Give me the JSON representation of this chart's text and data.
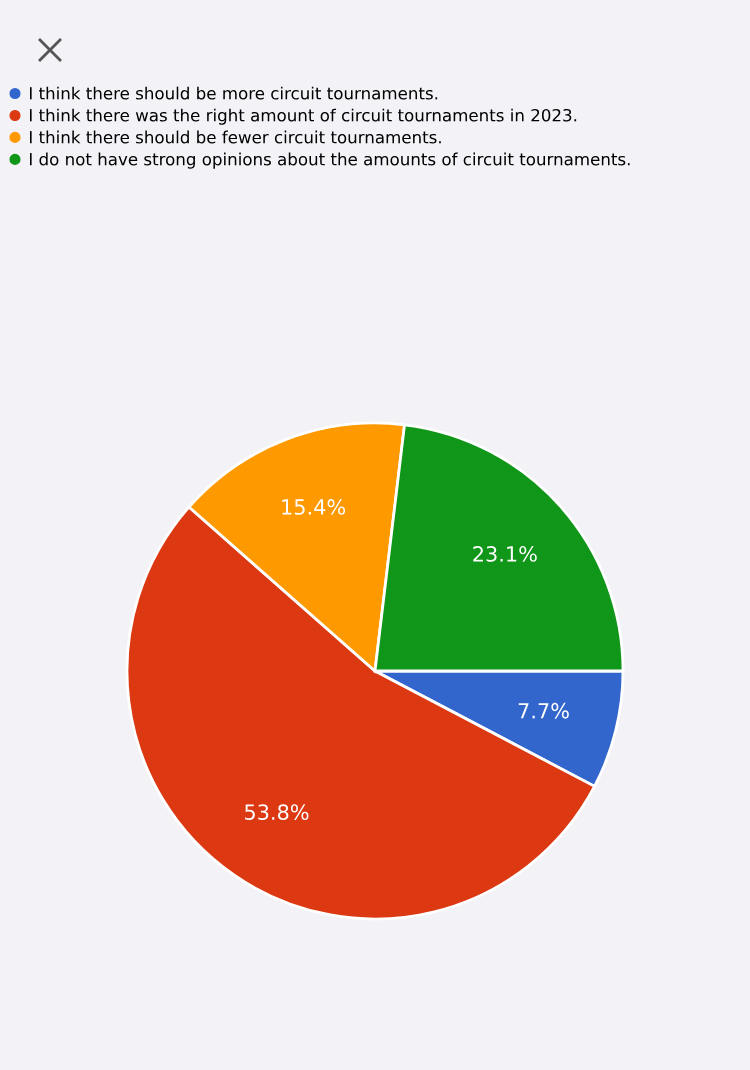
{
  "chart_data": {
    "type": "pie",
    "categories": [
      "I think there should be more circuit tournaments.",
      "I think there was the right amount of circuit tournaments in 2023.",
      "I think there should be fewer circuit tournaments.",
      "I do not have strong opinions about the amounts of circuit tournaments."
    ],
    "values": [
      7.7,
      53.8,
      15.4,
      23.1
    ],
    "colors": [
      "#3366cc",
      "#dc3912",
      "#ff9900",
      "#109618"
    ],
    "value_labels": [
      "7.7%",
      "53.8%",
      "15.4%",
      "23.1%"
    ],
    "legend": "top left"
  }
}
